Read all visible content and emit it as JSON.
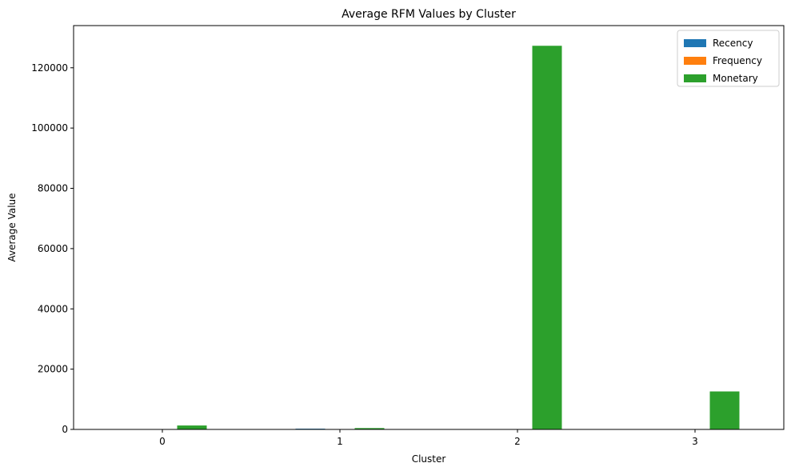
{
  "chart_data": {
    "type": "bar",
    "title": "Average RFM Values by Cluster",
    "xlabel": "Cluster",
    "ylabel": "Average Value",
    "categories": [
      "0",
      "1",
      "2",
      "3"
    ],
    "series": [
      {
        "name": "Recency",
        "color": "#1f77b4",
        "values": [
          40,
          245,
          8,
          15
        ]
      },
      {
        "name": "Frequency",
        "color": "#ff7f0e",
        "values": [
          4,
          1.5,
          80,
          22
        ]
      },
      {
        "name": "Monetary",
        "color": "#2ca02c",
        "values": [
          1300,
          450,
          127300,
          12600
        ]
      }
    ],
    "ylim": [
      0,
      134000
    ],
    "yticks": [
      0,
      20000,
      40000,
      60000,
      80000,
      100000,
      120000
    ],
    "grid": false,
    "legend_position": "top-right"
  }
}
